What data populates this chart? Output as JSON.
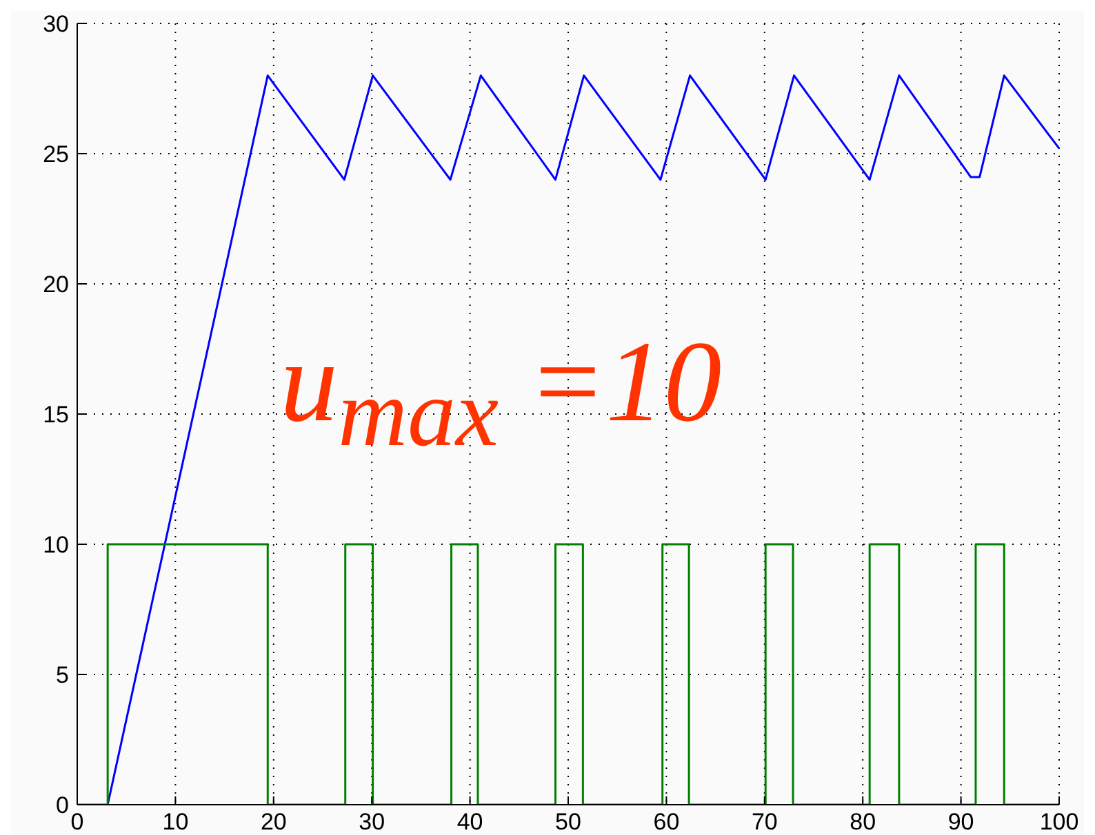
{
  "chart_data": {
    "type": "line",
    "xlim": [
      0,
      100
    ],
    "xticks": [
      0,
      10,
      20,
      30,
      40,
      50,
      60,
      70,
      80,
      90,
      100
    ],
    "ylim": [
      0,
      30
    ],
    "yticks": [
      0,
      5,
      10,
      15,
      20,
      25,
      30
    ],
    "grid": true,
    "series": [
      {
        "type": "line",
        "color": "#0000ff",
        "x": [
          3.1,
          19.4,
          27.2,
          30.1,
          38.0,
          41.1,
          48.7,
          51.6,
          59.4,
          62.4,
          70.1,
          73.0,
          80.7,
          83.7,
          91.0,
          91.9,
          94.4,
          100
        ],
        "values": [
          0,
          28,
          24,
          28,
          24,
          28,
          24,
          28,
          24,
          28,
          24,
          28,
          24,
          28,
          24.1,
          24.1,
          28,
          25.2
        ]
      },
      {
        "type": "step",
        "color": "#008000",
        "x": [
          0,
          3.1,
          19.4,
          27.3,
          30.1,
          38.1,
          40.8,
          48.7,
          51.5,
          59.6,
          62.3,
          70.1,
          72.9,
          80.7,
          83.7,
          91.5,
          94.4,
          100
        ],
        "values": [
          0,
          10,
          0,
          10,
          0,
          10,
          0,
          10,
          0,
          10,
          0,
          10,
          0,
          10,
          0,
          10,
          0,
          0
        ]
      }
    ],
    "annotations": [
      "u$_{max}$ =10"
    ]
  }
}
